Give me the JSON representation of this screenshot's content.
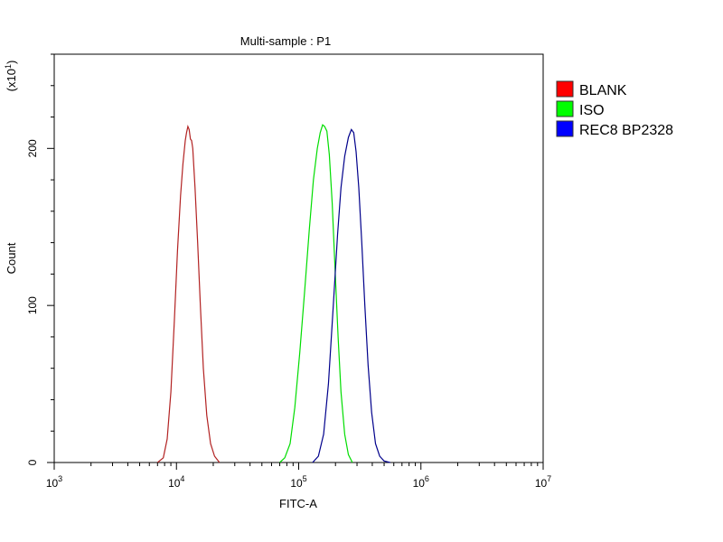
{
  "chart_data": {
    "type": "line",
    "title": "Multi-sample : P1",
    "xlabel": "FITC-A",
    "ylabel": "Count",
    "y_multiplier": {
      "base": "(x10",
      "exp": "1",
      "close": ")"
    },
    "x_scale": "log",
    "xlim": [
      1000,
      10000000
    ],
    "ylim": [
      0,
      260
    ],
    "x_ticks": [
      {
        "value": 1000,
        "base": "10",
        "exp": "3"
      },
      {
        "value": 10000,
        "base": "10",
        "exp": "4"
      },
      {
        "value": 100000,
        "base": "10",
        "exp": "5"
      },
      {
        "value": 1000000,
        "base": "10",
        "exp": "6"
      },
      {
        "value": 10000000,
        "base": "10",
        "exp": "7"
      }
    ],
    "y_ticks": [
      {
        "value": 0,
        "label": "0"
      },
      {
        "value": 100,
        "label": "100"
      },
      {
        "value": 200,
        "label": "200"
      }
    ],
    "grid": false,
    "legend_position": "right",
    "series": [
      {
        "name": "BLANK",
        "color": "#b22222",
        "legend_color": "#ff0000",
        "points": [
          [
            7000,
            0
          ],
          [
            7800,
            3
          ],
          [
            8400,
            15
          ],
          [
            9000,
            45
          ],
          [
            9600,
            90
          ],
          [
            10200,
            135
          ],
          [
            10800,
            170
          ],
          [
            11300,
            190
          ],
          [
            11800,
            205
          ],
          [
            12100,
            210
          ],
          [
            12400,
            214
          ],
          [
            12700,
            212
          ],
          [
            13000,
            206
          ],
          [
            13300,
            205
          ],
          [
            13600,
            200
          ],
          [
            14200,
            175
          ],
          [
            14900,
            140
          ],
          [
            15700,
            100
          ],
          [
            16600,
            60
          ],
          [
            17700,
            30
          ],
          [
            19000,
            12
          ],
          [
            20500,
            4
          ],
          [
            22500,
            0
          ]
        ]
      },
      {
        "name": "ISO",
        "color": "#00dd00",
        "legend_color": "#00ff00",
        "points": [
          [
            70000,
            0
          ],
          [
            77000,
            3
          ],
          [
            85000,
            12
          ],
          [
            93000,
            35
          ],
          [
            102000,
            70
          ],
          [
            112000,
            110
          ],
          [
            122000,
            148
          ],
          [
            132000,
            180
          ],
          [
            142000,
            200
          ],
          [
            150000,
            210
          ],
          [
            157000,
            215
          ],
          [
            163000,
            214
          ],
          [
            170000,
            211
          ],
          [
            178000,
            196
          ],
          [
            188000,
            165
          ],
          [
            198000,
            125
          ],
          [
            210000,
            80
          ],
          [
            222000,
            45
          ],
          [
            238000,
            18
          ],
          [
            255000,
            5
          ],
          [
            275000,
            0
          ]
        ]
      },
      {
        "name": "REC8 BP2328",
        "color": "#00008b",
        "legend_color": "#0000ff",
        "points": [
          [
            130000,
            0
          ],
          [
            145000,
            4
          ],
          [
            160000,
            18
          ],
          [
            175000,
            50
          ],
          [
            192000,
            100
          ],
          [
            208000,
            145
          ],
          [
            222000,
            175
          ],
          [
            238000,
            195
          ],
          [
            255000,
            207
          ],
          [
            270000,
            212
          ],
          [
            282000,
            210
          ],
          [
            295000,
            198
          ],
          [
            310000,
            175
          ],
          [
            328000,
            140
          ],
          [
            348000,
            100
          ],
          [
            370000,
            62
          ],
          [
            395000,
            32
          ],
          [
            425000,
            12
          ],
          [
            460000,
            4
          ],
          [
            500000,
            1
          ],
          [
            560000,
            0
          ]
        ]
      }
    ]
  }
}
